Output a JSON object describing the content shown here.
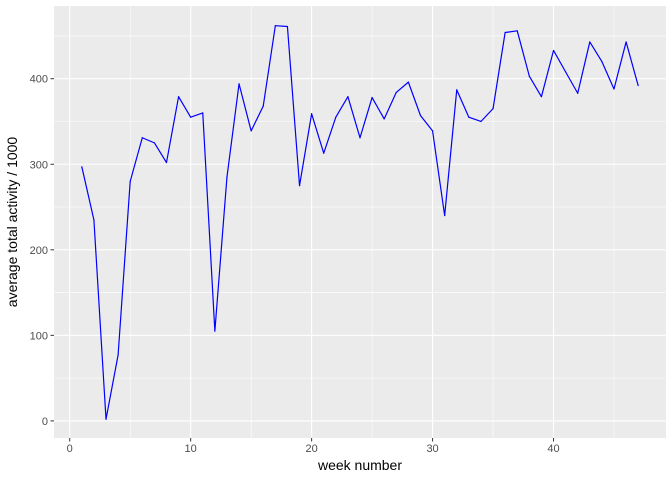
{
  "chart_data": {
    "type": "line",
    "title": "",
    "xlabel": "week number",
    "ylabel": "average total activity / 1000",
    "xlim": [
      -1.3,
      49.3
    ],
    "ylim": [
      -20,
      485
    ],
    "x_major_ticks": [
      0,
      10,
      20,
      30,
      40
    ],
    "x_minor_ticks": [
      5,
      15,
      25,
      35,
      45
    ],
    "y_major_ticks": [
      0,
      100,
      200,
      300,
      400
    ],
    "y_minor_ticks": [
      50,
      150,
      250,
      350,
      450
    ],
    "x_tick_labels": [
      "0",
      "10",
      "20",
      "30",
      "40"
    ],
    "y_tick_labels": [
      "0",
      "100",
      "200",
      "300",
      "400"
    ],
    "grid": true,
    "panel_color": "#ebebeb",
    "grid_color": "#ffffff",
    "series": [
      {
        "color": "#0000ff",
        "x": [
          1,
          2,
          3,
          4,
          5,
          6,
          7,
          8,
          9,
          10,
          11,
          12,
          13,
          14,
          15,
          16,
          17,
          18,
          19,
          20,
          21,
          22,
          23,
          24,
          25,
          26,
          27,
          28,
          29,
          30,
          31,
          32,
          33,
          34,
          35,
          36,
          37,
          38,
          39,
          40,
          41,
          42,
          43,
          44,
          45,
          46,
          47
        ],
        "values": [
          297,
          235,
          2,
          77,
          280,
          331,
          325,
          302,
          379,
          355,
          360,
          105,
          285,
          394,
          339,
          368,
          462,
          461,
          275,
          359,
          313,
          355,
          379,
          331,
          378,
          353,
          384,
          396,
          357,
          339,
          240,
          387,
          355,
          350,
          365,
          454,
          456,
          403,
          379,
          433,
          408,
          383,
          443,
          420,
          388,
          443,
          392
        ]
      }
    ]
  }
}
